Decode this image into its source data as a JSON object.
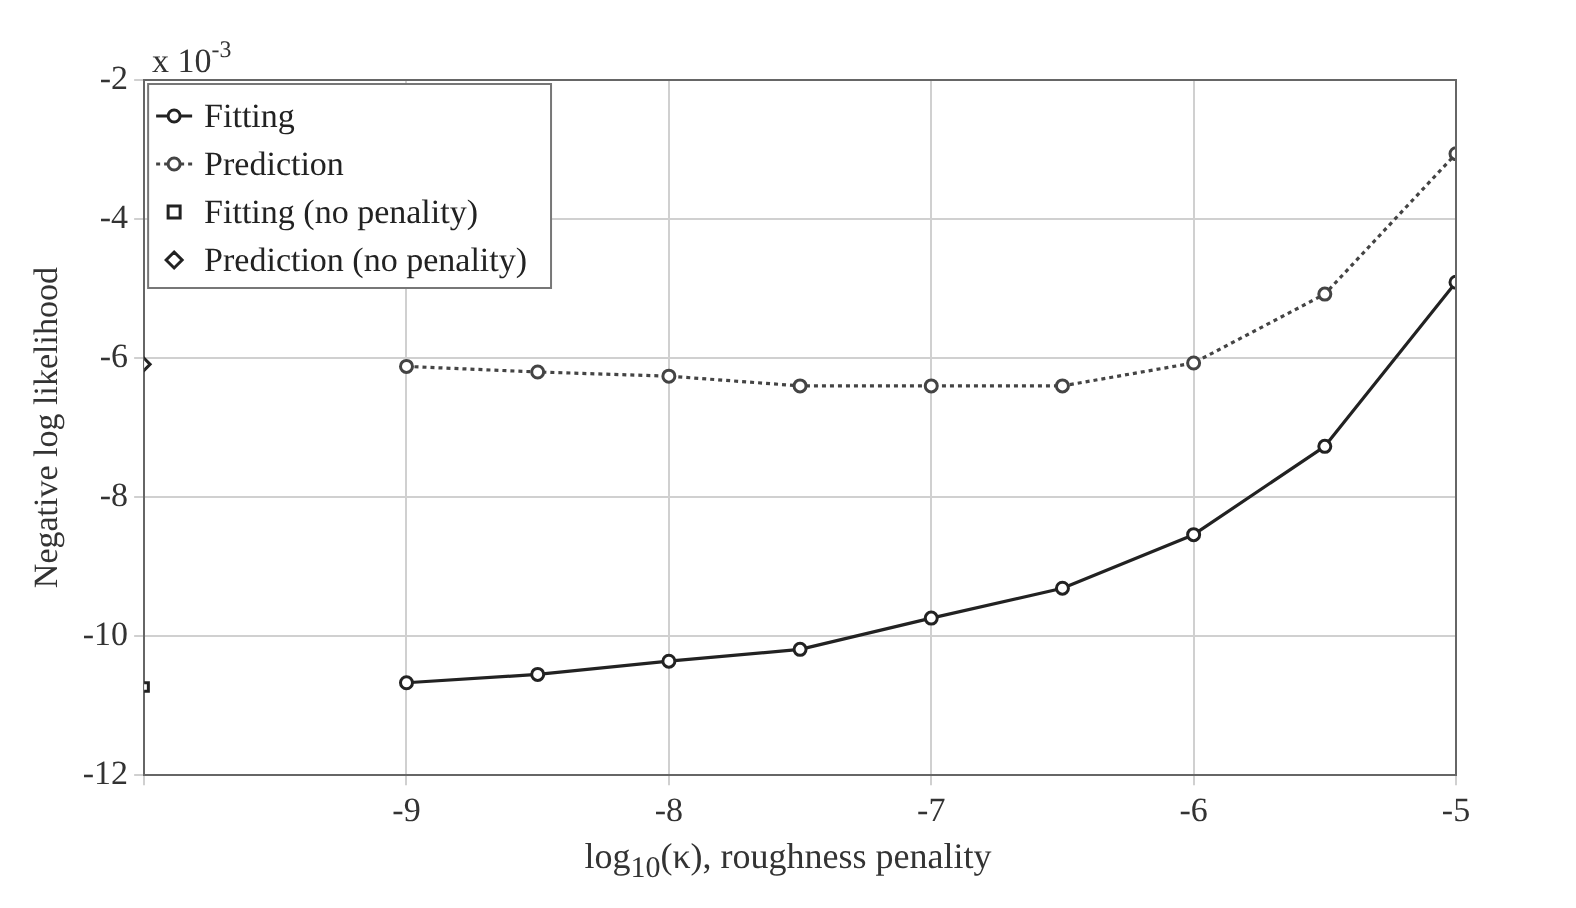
{
  "chart_data": {
    "type": "line",
    "xlabel": "log$_{10}$(κ), roughness penality",
    "ylabel": "Negative log likelihood",
    "annotations": [
      "x 10$^{-3}$"
    ],
    "xlim": [
      -10,
      -5
    ],
    "xticks": [
      {
        "value": -10,
        "label": null
      },
      -9,
      -8,
      -7,
      -6,
      -5
    ],
    "ylim": [
      -12,
      -2
    ],
    "yticks": [
      -12,
      -10,
      -8,
      -6,
      -4,
      -2
    ],
    "grid": true,
    "legend": "top left",
    "series": [
      {
        "name": "Fitting",
        "color": "#222222",
        "marker": "circle",
        "line_style": "solid",
        "x": [
          -9,
          -8.5,
          -8,
          -7.5,
          -7,
          -6.5,
          -6,
          -5.5,
          -5
        ],
        "values": [
          -10.67,
          -10.55,
          -10.36,
          -10.19,
          -9.74,
          -9.31,
          -8.54,
          -7.27,
          -4.91
        ]
      },
      {
        "name": "Prediction",
        "color": "#444444",
        "marker": "circle",
        "line_style": "dotted",
        "x": [
          -9,
          -8.5,
          -8,
          -7.5,
          -7,
          -6.5,
          -6,
          -5.5,
          -5
        ],
        "values": [
          -6.12,
          -6.2,
          -6.26,
          -6.4,
          -6.4,
          -6.4,
          -6.07,
          -5.08,
          -3.06
        ]
      },
      {
        "name": "Fitting (no penality)",
        "type": "scatter",
        "color": "#222222",
        "marker": "square",
        "x": [
          -10
        ],
        "values": [
          -10.73
        ]
      },
      {
        "name": "Prediction (no penality)",
        "type": "scatter",
        "color": "#222222",
        "marker": "diamond",
        "x": [
          -10
        ],
        "values": [
          -6.09
        ]
      }
    ]
  }
}
